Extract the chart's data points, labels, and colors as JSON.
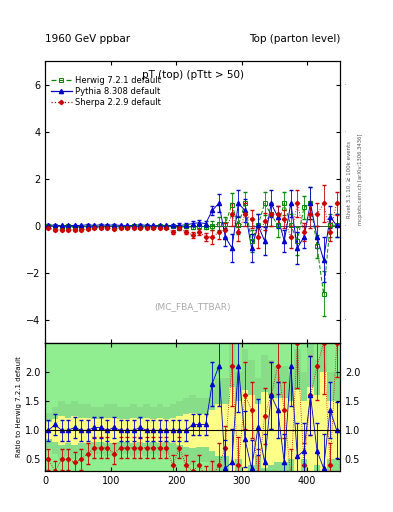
{
  "title_left": "1960 GeV ppbar",
  "title_right": "Top (parton level)",
  "plot_title": "pT (top) (pTtt > 50)",
  "watermark": "(MC_FBA_TTBAR)",
  "ylabel_ratio": "Ratio to Herwig 7.2.1 default",
  "right_label": "Rivet 3.1.10, ≥ 100k events",
  "right_label2": "mcplots.cern.ch [arXiv:1306.3436]",
  "ylim_main": [
    -5,
    7
  ],
  "ylim_ratio": [
    0.3,
    2.5
  ],
  "xlim": [
    0,
    450
  ],
  "yticks_main": [
    -4,
    -2,
    0,
    2,
    4,
    6
  ],
  "yticks_ratio": [
    0.5,
    1.0,
    1.5,
    2.0
  ],
  "herwig_color": "#008800",
  "pythia_color": "#0000cc",
  "sherpa_color": "#cc0000",
  "legend_entries": [
    "Herwig 7.2.1 default",
    "Pythia 8.308 default",
    "Sherpa 2.2.9 default"
  ],
  "x_centers": [
    5,
    15,
    25,
    35,
    45,
    55,
    65,
    75,
    85,
    95,
    105,
    115,
    125,
    135,
    145,
    155,
    165,
    175,
    185,
    195,
    205,
    215,
    225,
    235,
    245,
    255,
    265,
    275,
    285,
    295,
    305,
    315,
    325,
    335,
    345,
    355,
    365,
    375,
    385,
    395,
    405,
    415,
    425,
    435,
    445
  ],
  "herwig_y": [
    0.0,
    -0.02,
    -0.05,
    -0.03,
    -0.08,
    -0.04,
    -0.04,
    -0.07,
    -0.06,
    -0.03,
    -0.04,
    -0.07,
    -0.06,
    -0.03,
    -0.07,
    -0.03,
    -0.07,
    -0.03,
    -0.07,
    -0.03,
    -0.08,
    -0.03,
    -0.07,
    -0.03,
    -0.05,
    0.0,
    0.08,
    0.09,
    0.9,
    0.02,
    0.95,
    -0.65,
    0.02,
    0.95,
    0.48,
    0.02,
    0.95,
    0.02,
    -0.65,
    0.78,
    0.95,
    -0.88,
    -2.9,
    0.02,
    0.02
  ],
  "pythia_y": [
    0.04,
    0.01,
    0.01,
    0.01,
    0.01,
    0.01,
    0.04,
    0.01,
    0.04,
    0.01,
    0.04,
    0.01,
    0.01,
    0.01,
    0.04,
    0.01,
    0.01,
    0.01,
    0.01,
    0.01,
    0.01,
    0.04,
    0.09,
    0.13,
    0.09,
    0.65,
    0.95,
    -0.48,
    -0.95,
    0.95,
    0.65,
    -0.95,
    0.01,
    -0.65,
    0.95,
    0.38,
    -0.65,
    0.95,
    -0.95,
    -0.48,
    0.95,
    -0.48,
    -1.45,
    0.38,
    0.01
  ],
  "sherpa_y": [
    -0.09,
    -0.18,
    -0.18,
    -0.18,
    -0.18,
    -0.18,
    -0.13,
    -0.09,
    -0.09,
    -0.09,
    -0.13,
    -0.09,
    -0.09,
    -0.09,
    -0.09,
    -0.09,
    -0.09,
    -0.09,
    -0.09,
    -0.28,
    -0.09,
    -0.28,
    -0.38,
    -0.28,
    -0.48,
    -0.48,
    -0.28,
    -0.18,
    0.48,
    -0.28,
    0.48,
    0.28,
    -0.48,
    0.18,
    0.48,
    0.48,
    0.28,
    -0.48,
    0.95,
    -0.28,
    0.48,
    0.48,
    0.95,
    -0.28,
    0.95
  ],
  "herwig_err": [
    0.04,
    0.04,
    0.04,
    0.04,
    0.04,
    0.04,
    0.04,
    0.04,
    0.04,
    0.04,
    0.04,
    0.04,
    0.04,
    0.04,
    0.04,
    0.04,
    0.04,
    0.04,
    0.04,
    0.04,
    0.08,
    0.08,
    0.09,
    0.09,
    0.09,
    0.18,
    0.28,
    0.28,
    0.48,
    0.38,
    0.48,
    0.48,
    0.48,
    0.48,
    0.48,
    0.48,
    0.48,
    0.48,
    0.58,
    0.48,
    0.68,
    0.48,
    0.95,
    0.48,
    0.48
  ],
  "pythia_err": [
    0.04,
    0.04,
    0.04,
    0.04,
    0.04,
    0.04,
    0.04,
    0.04,
    0.04,
    0.04,
    0.04,
    0.04,
    0.04,
    0.04,
    0.04,
    0.04,
    0.04,
    0.04,
    0.04,
    0.04,
    0.09,
    0.09,
    0.09,
    0.13,
    0.13,
    0.18,
    0.38,
    0.38,
    0.58,
    0.58,
    0.48,
    0.58,
    0.48,
    0.58,
    0.58,
    0.48,
    0.48,
    0.58,
    0.68,
    0.48,
    0.68,
    0.48,
    0.95,
    0.48,
    0.48
  ],
  "sherpa_err": [
    0.04,
    0.04,
    0.04,
    0.04,
    0.04,
    0.04,
    0.04,
    0.04,
    0.04,
    0.04,
    0.04,
    0.04,
    0.04,
    0.04,
    0.04,
    0.04,
    0.04,
    0.04,
    0.04,
    0.09,
    0.09,
    0.09,
    0.13,
    0.13,
    0.18,
    0.28,
    0.28,
    0.28,
    0.48,
    0.38,
    0.48,
    0.38,
    0.48,
    0.38,
    0.48,
    0.38,
    0.38,
    0.48,
    0.58,
    0.38,
    0.58,
    0.48,
    0.78,
    0.38,
    0.48
  ],
  "ratio_green_bands": [
    0.3,
    0.4,
    0.5,
    0.45,
    0.5,
    0.45,
    0.45,
    0.4,
    0.4,
    0.45,
    0.45,
    0.4,
    0.4,
    0.45,
    0.4,
    0.45,
    0.4,
    0.45,
    0.4,
    0.45,
    0.5,
    0.55,
    0.6,
    0.55,
    0.55,
    0.7,
    0.9,
    0.9,
    1.5,
    1.0,
    1.4,
    1.2,
    0.9,
    1.3,
    1.2,
    1.1,
    1.1,
    1.0,
    1.4,
    1.0,
    1.5,
    1.2,
    2.0,
    1.0,
    1.0
  ],
  "ratio_yellow_bands": [
    0.15,
    0.2,
    0.25,
    0.22,
    0.25,
    0.22,
    0.22,
    0.2,
    0.2,
    0.22,
    0.22,
    0.2,
    0.2,
    0.22,
    0.2,
    0.22,
    0.2,
    0.22,
    0.2,
    0.22,
    0.25,
    0.28,
    0.3,
    0.28,
    0.28,
    0.35,
    0.45,
    0.45,
    0.75,
    0.5,
    0.7,
    0.6,
    0.45,
    0.65,
    0.6,
    0.55,
    0.55,
    0.5,
    0.7,
    0.5,
    0.75,
    0.6,
    1.0,
    0.5,
    0.5
  ],
  "ratio_pythia_y": [
    1.0,
    1.1,
    1.0,
    1.0,
    1.05,
    1.0,
    1.0,
    1.05,
    1.05,
    1.0,
    1.05,
    1.0,
    1.0,
    1.0,
    1.05,
    1.0,
    1.0,
    1.0,
    1.0,
    1.0,
    1.0,
    1.0,
    1.1,
    1.1,
    1.1,
    1.8,
    2.1,
    0.35,
    0.45,
    2.1,
    0.85,
    0.35,
    1.05,
    0.45,
    1.6,
    1.35,
    0.45,
    2.1,
    0.55,
    0.65,
    1.6,
    0.65,
    0.35,
    1.35,
    1.0
  ],
  "ratio_sherpa_y": [
    0.5,
    0.3,
    0.5,
    0.5,
    0.45,
    0.5,
    0.6,
    0.7,
    0.7,
    0.7,
    0.6,
    0.7,
    0.7,
    0.7,
    0.7,
    0.7,
    0.7,
    0.7,
    0.7,
    0.4,
    0.7,
    0.4,
    0.3,
    0.4,
    0.2,
    0.2,
    0.4,
    0.7,
    2.1,
    0.4,
    1.6,
    1.35,
    0.2,
    1.25,
    1.6,
    2.1,
    1.35,
    0.2,
    2.5,
    0.4,
    1.6,
    2.1,
    2.5,
    0.4,
    2.5
  ],
  "ratio_pythia_err": [
    0.18,
    0.18,
    0.18,
    0.18,
    0.18,
    0.18,
    0.18,
    0.18,
    0.18,
    0.18,
    0.18,
    0.18,
    0.18,
    0.18,
    0.18,
    0.18,
    0.18,
    0.18,
    0.18,
    0.18,
    0.18,
    0.18,
    0.18,
    0.18,
    0.18,
    0.38,
    0.68,
    0.48,
    0.58,
    0.78,
    0.48,
    0.48,
    0.48,
    0.48,
    0.58,
    0.48,
    0.48,
    0.68,
    0.58,
    0.48,
    0.68,
    0.48,
    0.58,
    0.48,
    0.48
  ],
  "ratio_sherpa_err": [
    0.18,
    0.18,
    0.18,
    0.18,
    0.18,
    0.18,
    0.18,
    0.18,
    0.18,
    0.18,
    0.18,
    0.18,
    0.18,
    0.18,
    0.18,
    0.18,
    0.18,
    0.18,
    0.18,
    0.18,
    0.18,
    0.18,
    0.18,
    0.18,
    0.18,
    0.28,
    0.38,
    0.38,
    0.68,
    0.48,
    0.58,
    0.48,
    0.48,
    0.48,
    0.58,
    0.48,
    0.48,
    0.48,
    0.78,
    0.38,
    0.68,
    0.58,
    0.88,
    0.38,
    0.58
  ]
}
